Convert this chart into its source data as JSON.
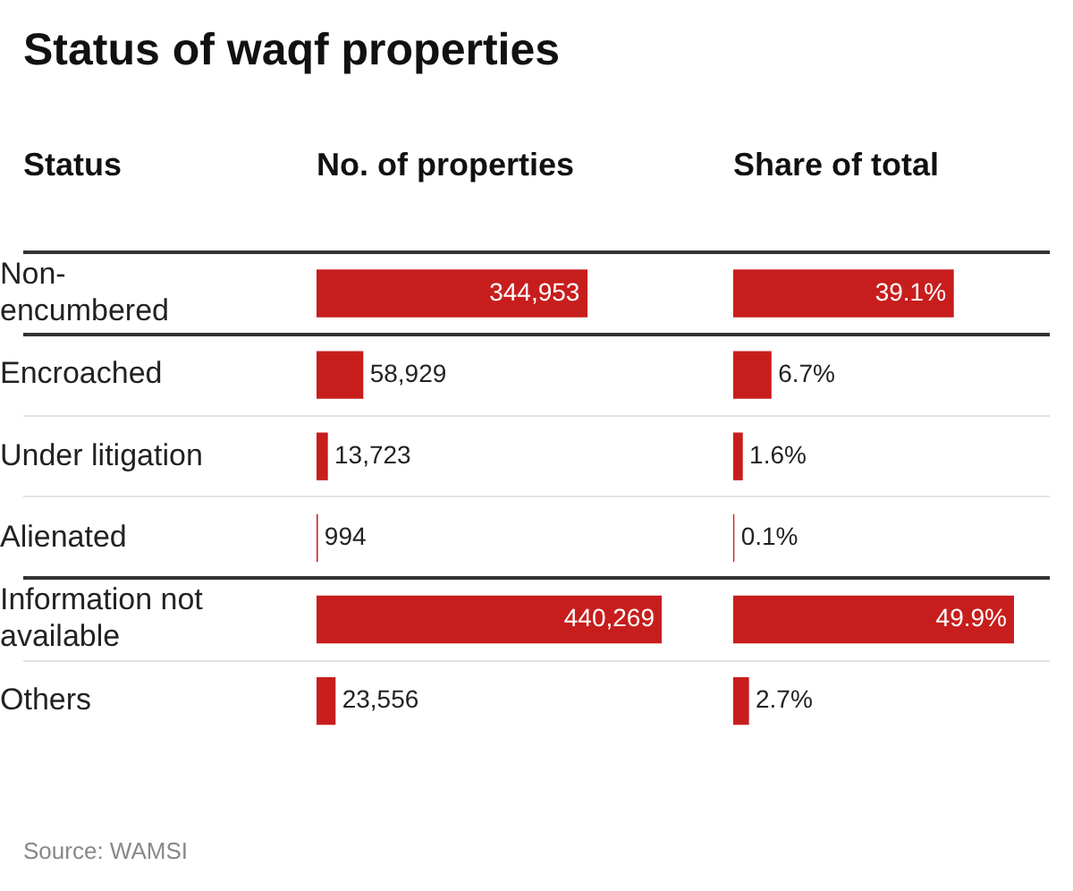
{
  "chart_data": [
    {
      "type": "bar",
      "orientation": "horizontal",
      "title": "Status of waqf properties",
      "ylabel": "Status",
      "xlabel": "No. of properties",
      "categories": [
        "Non-encumbered",
        "Encroached",
        "Under litigation",
        "Alienated",
        "Information not available",
        "Others"
      ],
      "series": [
        {
          "color": "#c71e1d",
          "values": [
            344953,
            58929,
            13723,
            994,
            440269,
            23556
          ],
          "value_labels": [
            "344,953",
            "58,929",
            "13,723",
            "994",
            "440,269",
            "23,556"
          ]
        }
      ],
      "xlim": [
        0,
        440269
      ],
      "legend": false,
      "tick_labels": "y"
    },
    {
      "type": "bar",
      "orientation": "horizontal",
      "xlabel": "Share of total",
      "categories": [
        null,
        null,
        null,
        null,
        null,
        null
      ],
      "series": [
        {
          "color": "#c71e1d",
          "values": [
            39.1,
            6.7,
            1.6,
            0.1,
            49.9,
            2.7
          ],
          "value_labels": [
            "39.1%",
            "6.7%",
            "1.6%",
            "0.1%",
            "49.9%",
            "2.7%"
          ]
        }
      ],
      "xlim": [
        0,
        49.9
      ],
      "legend": false,
      "tick_labels": false,
      "annotations": [
        "Source: WAMSI"
      ]
    }
  ]
}
